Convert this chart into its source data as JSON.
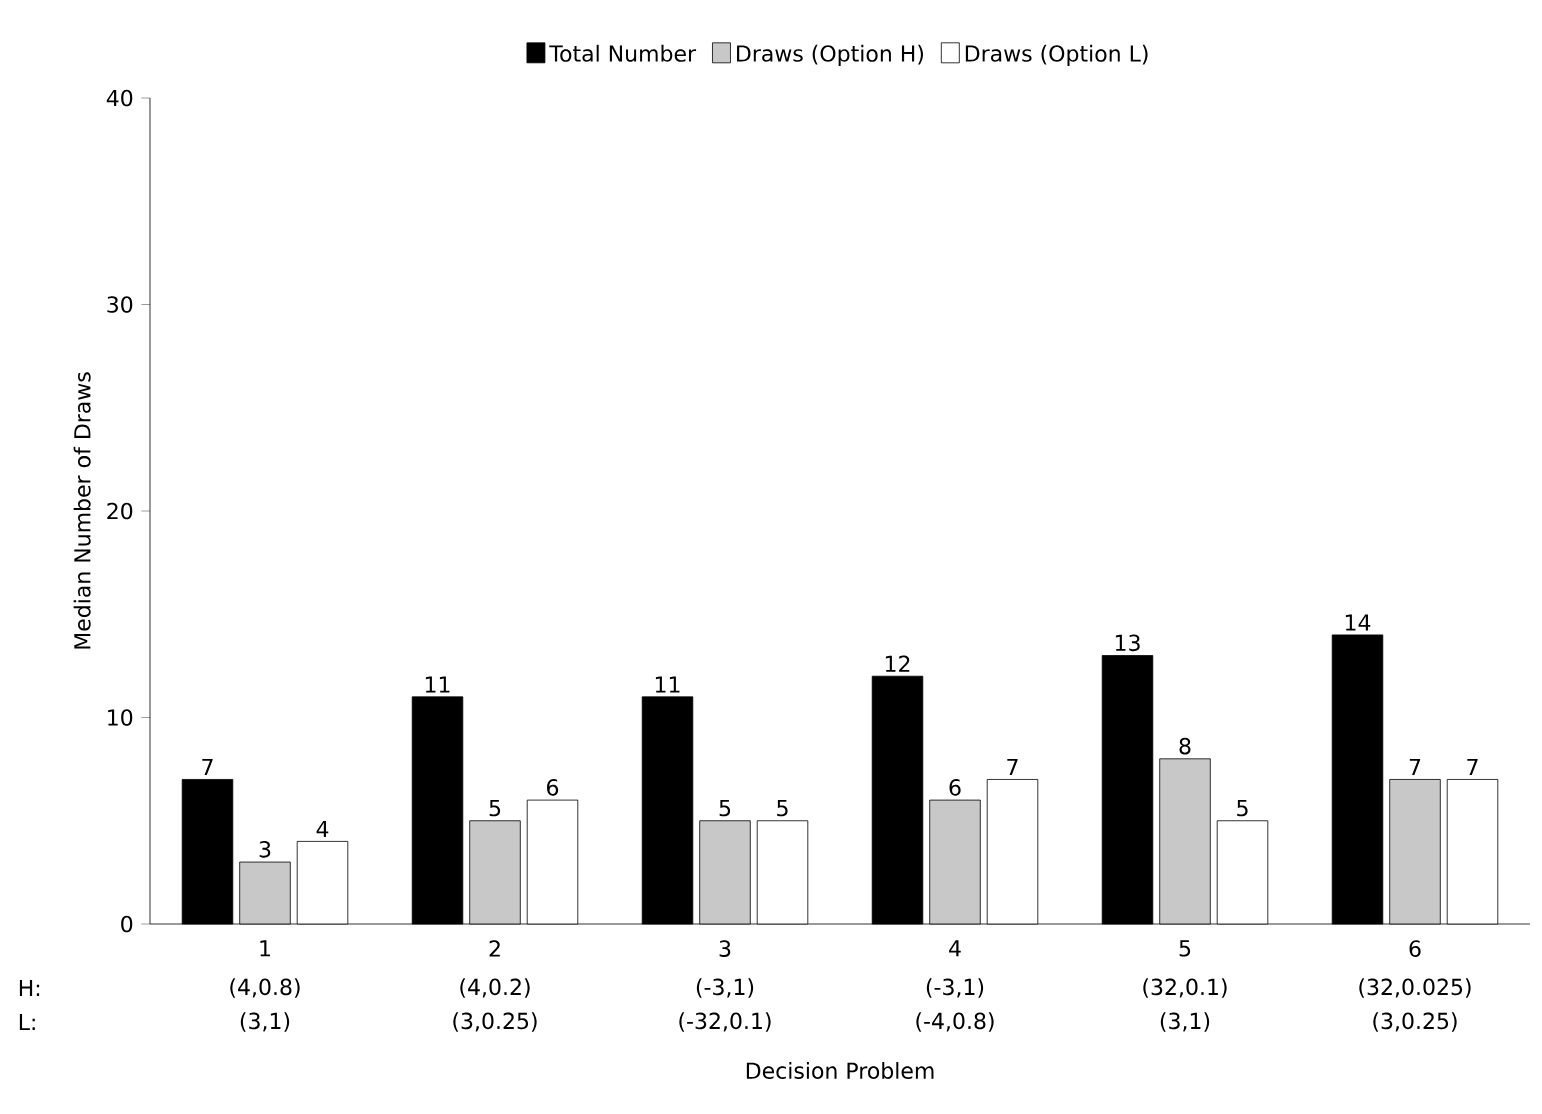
{
  "chart_data": {
    "type": "bar",
    "xlabel": "Decision Problem",
    "ylabel": "Median Number of Draws",
    "categories": [
      "1",
      "2",
      "3",
      "4",
      "5",
      "6"
    ],
    "series": [
      {
        "name": "Total Number",
        "color": "#000000",
        "values": [
          7,
          11,
          11,
          12,
          13,
          14
        ]
      },
      {
        "name": "Draws (Option H)",
        "color": "#c8c8c8",
        "values": [
          3,
          5,
          5,
          6,
          8,
          7
        ]
      },
      {
        "name": "Draws (Option L)",
        "color": "#ffffff",
        "values": [
          4,
          6,
          5,
          7,
          5,
          7
        ]
      }
    ],
    "ylim": [
      0,
      40
    ],
    "yticks": [
      0,
      10,
      20,
      30,
      40
    ],
    "data_labels": true,
    "legend": "top",
    "grid": false,
    "annotations": [
      "H:",
      "L:",
      "(4,0.8)",
      "(4,0.2)",
      "(-3,1)",
      "(-3,1)",
      "(32,0.1)",
      "(32,0.025)",
      "(3,1)",
      "(3,0.25)",
      "(-32,0.1)",
      "(-4,0.8)",
      "(3,1)",
      "(3,0.25)"
    ]
  }
}
